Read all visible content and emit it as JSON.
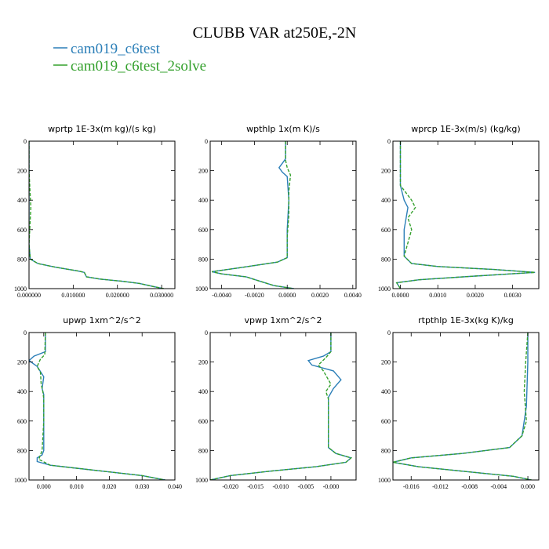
{
  "figure": {
    "title": "CLUBB VAR at250E,-2N",
    "legend": [
      {
        "label": "cam019_c6test",
        "color": "#2c7fb8",
        "dash": "solid"
      },
      {
        "label": "cam019_c6test_2solve",
        "color": "#33a02c",
        "dash": "dashed"
      }
    ]
  },
  "chart_data": [
    {
      "type": "line",
      "title": "wprtp  1E-3x(m kg)/(s kg)",
      "xlim": [
        0.0,
        0.033
      ],
      "ylim": [
        1000,
        0
      ],
      "xticks": [
        0.0,
        0.01,
        0.02,
        0.03
      ],
      "xtick_labels": [
        "0.000000",
        "0.010000",
        "0.020000",
        "0.030000"
      ],
      "yticks": [
        0,
        200,
        400,
        600,
        800,
        1000
      ],
      "ytick_labels": [
        "0",
        "200",
        "400",
        "600",
        "800",
        "1000"
      ],
      "series": [
        {
          "name": "cam019_c6test",
          "x": [
            0.0,
            0.0,
            0.0,
            0.0,
            0.0003,
            0.002,
            0.006,
            0.011,
            0.0125,
            0.013,
            0.016,
            0.021,
            0.025,
            0.028,
            0.0305
          ],
          "y": [
            0,
            200,
            400,
            700,
            800,
            830,
            855,
            880,
            890,
            920,
            935,
            950,
            965,
            985,
            1000
          ]
        },
        {
          "name": "cam019_c6test_2solve",
          "x": [
            0.0,
            0.0,
            0.0004,
            0.0,
            0.0003,
            0.002,
            0.006,
            0.011,
            0.0125,
            0.013,
            0.016,
            0.021,
            0.025,
            0.028,
            0.0305
          ],
          "y": [
            0,
            200,
            450,
            700,
            800,
            830,
            855,
            880,
            890,
            920,
            935,
            950,
            965,
            985,
            1000
          ]
        }
      ]
    },
    {
      "type": "line",
      "title": "wpthlp  1x(m K)/s",
      "xlim": [
        -0.0047,
        0.0042
      ],
      "ylim": [
        1000,
        0
      ],
      "xticks": [
        -0.004,
        -0.002,
        0.0,
        0.002,
        0.004
      ],
      "xtick_labels": [
        "-0.0040",
        "-0.0020",
        "0.0000",
        "0.0020",
        "0.0040"
      ],
      "yticks": [
        0,
        200,
        400,
        600,
        800,
        1000
      ],
      "ytick_labels": [
        "0",
        "200",
        "400",
        "600",
        "800",
        "1000"
      ],
      "series": [
        {
          "name": "cam019_c6test",
          "x": [
            -0.0001,
            -0.0001,
            -0.0003,
            -0.0005,
            -0.0003,
            0.0,
            0.0001,
            0.0,
            0.0,
            -0.0006,
            -0.003,
            -0.0046,
            -0.004,
            -0.0025,
            -0.0018,
            -0.0008,
            0.0004
          ],
          "y": [
            0,
            120,
            150,
            180,
            210,
            240,
            400,
            600,
            790,
            820,
            860,
            885,
            900,
            920,
            945,
            980,
            1000
          ]
        },
        {
          "name": "cam019_c6test_2solve",
          "x": [
            -0.0001,
            -0.0001,
            0.0,
            0.0002,
            0.0001,
            0.0001,
            0.0,
            0.0,
            -0.0006,
            -0.003,
            -0.0046,
            -0.004,
            -0.0025,
            -0.0018,
            -0.0008,
            0.0004
          ],
          "y": [
            0,
            130,
            180,
            230,
            340,
            500,
            650,
            790,
            820,
            860,
            885,
            900,
            920,
            945,
            980,
            1000
          ]
        }
      ]
    },
    {
      "type": "line",
      "title": "wprcp  1E-3x(m/s) (kg/kg)",
      "xlim": [
        -0.0002,
        0.0037
      ],
      "ylim": [
        1000,
        0
      ],
      "xticks": [
        0.0,
        0.001,
        0.002,
        0.003
      ],
      "xtick_labels": [
        "0.0000",
        "0.0010",
        "0.0020",
        "0.0030"
      ],
      "yticks": [
        0,
        200,
        400,
        600,
        800,
        1000
      ],
      "ytick_labels": [
        "0",
        "200",
        "400",
        "600",
        "800",
        "1000"
      ],
      "series": [
        {
          "name": "cam019_c6test",
          "x": [
            0.0,
            0.0,
            0.0001,
            0.0002,
            0.0001,
            0.0001,
            0.0003,
            0.001,
            0.0025,
            0.0036,
            0.002,
            0.0005,
            -0.0001,
            0.0
          ],
          "y": [
            0,
            300,
            400,
            450,
            600,
            780,
            830,
            850,
            870,
            890,
            915,
            940,
            960,
            1000
          ]
        },
        {
          "name": "cam019_c6test_2solve",
          "x": [
            0.0,
            0.0,
            0.0003,
            0.0004,
            0.0002,
            0.0003,
            0.0001,
            0.0003,
            0.001,
            0.0025,
            0.0036,
            0.002,
            0.0005,
            -0.0001,
            0.0
          ],
          "y": [
            0,
            300,
            400,
            450,
            520,
            600,
            780,
            830,
            850,
            870,
            890,
            915,
            940,
            960,
            1000
          ]
        }
      ]
    },
    {
      "type": "line",
      "title": "upwp  1xm^2/s^2",
      "xlim": [
        -0.0045,
        0.04
      ],
      "ylim": [
        1000,
        0
      ],
      "xticks": [
        0.0,
        0.01,
        0.02,
        0.03,
        0.04
      ],
      "xtick_labels": [
        "0.000",
        "0.010",
        "0.020",
        "0.030",
        "0.040"
      ],
      "yticks": [
        0,
        200,
        400,
        600,
        800,
        1000
      ],
      "ytick_labels": [
        "0",
        "200",
        "400",
        "600",
        "800",
        "1000"
      ],
      "series": [
        {
          "name": "cam019_c6test",
          "x": [
            0.0005,
            0.0005,
            -0.003,
            -0.0045,
            -0.002,
            0.0,
            -0.0005,
            0.0,
            0.0,
            0.0,
            -0.0005,
            -0.002,
            -0.002,
            0.002,
            0.01,
            0.02,
            0.03,
            0.037
          ],
          "y": [
            0,
            130,
            160,
            190,
            230,
            300,
            380,
            420,
            600,
            800,
            830,
            850,
            875,
            900,
            920,
            945,
            970,
            1000
          ]
        },
        {
          "name": "cam019_c6test_2solve",
          "x": [
            0.0005,
            0.0003,
            -0.001,
            -0.002,
            -0.001,
            -0.0008,
            -0.0003,
            0.0,
            0.0,
            -0.0005,
            -0.001,
            -0.0015,
            0.002,
            0.01,
            0.02,
            0.03,
            0.037
          ],
          "y": [
            0,
            150,
            180,
            230,
            270,
            350,
            400,
            450,
            600,
            800,
            830,
            860,
            900,
            920,
            945,
            970,
            1000
          ]
        }
      ]
    },
    {
      "type": "line",
      "title": "vpwp  1xm^2/s^2",
      "xlim": [
        -0.024,
        0.005
      ],
      "ylim": [
        1000,
        0
      ],
      "xticks": [
        -0.02,
        -0.015,
        -0.01,
        -0.005,
        0.0
      ],
      "xtick_labels": [
        "-0.020",
        "-0.015",
        "-0.010",
        "-0.005",
        "-0.000"
      ],
      "yticks": [
        0,
        200,
        400,
        600,
        800,
        1000
      ],
      "ytick_labels": [
        "0",
        "200",
        "400",
        "600",
        "800",
        "1000"
      ],
      "series": [
        {
          "name": "cam019_c6test",
          "x": [
            0.0,
            0.0,
            -0.0015,
            -0.0045,
            -0.0038,
            0.0005,
            0.002,
            0.0005,
            -0.0005,
            -0.0005,
            -0.0005,
            0.001,
            0.004,
            0.003,
            -0.003,
            -0.012,
            -0.02,
            -0.024
          ],
          "y": [
            0,
            130,
            160,
            190,
            220,
            260,
            320,
            380,
            440,
            600,
            780,
            820,
            850,
            880,
            910,
            940,
            970,
            1000
          ]
        },
        {
          "name": "cam019_c6test_2solve",
          "x": [
            0.0,
            0.0,
            -0.001,
            -0.0025,
            -0.0015,
            0.0,
            -0.001,
            -0.0005,
            -0.0005,
            -0.0005,
            0.001,
            0.004,
            0.003,
            -0.003,
            -0.012,
            -0.02,
            -0.024
          ],
          "y": [
            0,
            130,
            170,
            220,
            260,
            350,
            400,
            450,
            600,
            780,
            820,
            850,
            880,
            910,
            940,
            970,
            1000
          ]
        }
      ]
    },
    {
      "type": "line",
      "title": "rtpthlp  1E-3x(kg K)/kg",
      "xlim": [
        -0.0185,
        0.0015
      ],
      "ylim": [
        1000,
        0
      ],
      "xticks": [
        -0.016,
        -0.012,
        -0.008,
        -0.004,
        0.0
      ],
      "xtick_labels": [
        "-0.016",
        "-0.012",
        "-0.008",
        "-0.004",
        "0.000"
      ],
      "yticks": [
        0,
        200,
        400,
        600,
        800,
        1000
      ],
      "ytick_labels": [
        "0",
        "200",
        "400",
        "600",
        "800",
        "1000"
      ],
      "series": [
        {
          "name": "cam019_c6test",
          "x": [
            0.0,
            0.0,
            -0.0002,
            -0.0008,
            -0.0025,
            -0.009,
            -0.016,
            -0.0185,
            -0.015,
            -0.008,
            -0.002,
            0.0005
          ],
          "y": [
            0,
            200,
            500,
            700,
            780,
            820,
            850,
            880,
            910,
            945,
            975,
            1000
          ]
        },
        {
          "name": "cam019_c6test_2solve",
          "x": [
            0.0,
            -0.0003,
            -0.0005,
            -0.0002,
            -0.0008,
            -0.0025,
            -0.009,
            -0.016,
            -0.0185,
            -0.015,
            -0.008,
            -0.002,
            0.0005
          ],
          "y": [
            0,
            200,
            400,
            600,
            700,
            780,
            820,
            850,
            880,
            910,
            945,
            975,
            1000
          ]
        }
      ]
    }
  ]
}
